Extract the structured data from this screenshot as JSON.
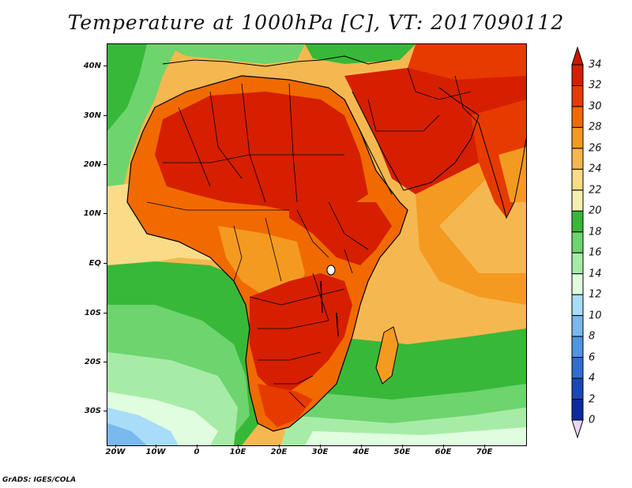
{
  "title": "Temperature at 1000hPa [C], VT: 2017090112",
  "credit": "GrADS: IGES/COLA",
  "map": {
    "region": "Africa and Arabian Peninsula",
    "lon_range": [
      "20W",
      "80E"
    ],
    "lat_range": [
      "37S",
      "45N"
    ],
    "lat_labels": [
      "40N",
      "30N",
      "20N",
      "10N",
      "EQ",
      "10S",
      "20S",
      "30S"
    ],
    "lon_labels": [
      "20W",
      "10W",
      "0",
      "10E",
      "20E",
      "30E",
      "40E",
      "50E",
      "60E",
      "70E"
    ],
    "variable": "Temperature at 1000hPa",
    "units": "C"
  },
  "legend": {
    "levels": [
      "34",
      "32",
      "30",
      "28",
      "26",
      "24",
      "22",
      "20",
      "18",
      "16",
      "14",
      "12",
      "10",
      "8",
      "6",
      "4",
      "2",
      "0"
    ],
    "colors": [
      "#d51f00",
      "#e63a00",
      "#f06a00",
      "#f59a20",
      "#f5b850",
      "#fadc88",
      "#f5f0b0",
      "#38b838",
      "#6ed46e",
      "#a6eca6",
      "#e0fde0",
      "#a8dcf8",
      "#7ab8ee",
      "#4e96e0",
      "#2e6ed0",
      "#1a48b8",
      "#0e2aa0",
      "#0a1270"
    ],
    "top_triangle_color": "#c81800",
    "bottom_triangle_color": "#e8d8f8"
  }
}
